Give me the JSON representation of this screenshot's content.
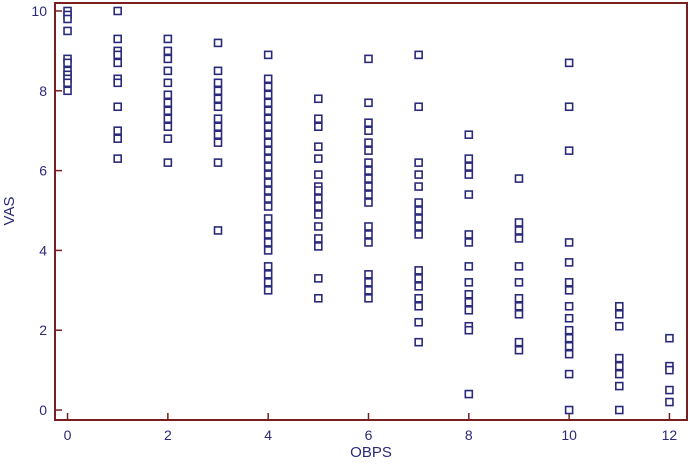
{
  "chart_data": {
    "type": "scatter",
    "title": "",
    "xlabel": "OBPS",
    "ylabel": "VAS",
    "xlim": [
      -0.25,
      12.35
    ],
    "ylim": [
      -0.25,
      10.2
    ],
    "x_ticks": [
      0,
      2,
      4,
      6,
      8,
      10,
      12
    ],
    "y_ticks": [
      0,
      2,
      4,
      6,
      8,
      10
    ],
    "grid": false,
    "legend": "none",
    "colors": {
      "frame": "#7a1f1f",
      "marker": "#2a2a7a",
      "text": "#2a2a7a"
    },
    "series": [
      {
        "marker": "open-square",
        "points": [
          [
            0,
            10
          ],
          [
            0,
            9.9
          ],
          [
            0,
            9.8
          ],
          [
            0,
            9.5
          ],
          [
            0,
            8.8
          ],
          [
            0,
            8.7
          ],
          [
            0,
            8.5
          ],
          [
            0,
            8.4
          ],
          [
            0,
            8.3
          ],
          [
            0,
            8.2
          ],
          [
            0,
            8
          ],
          [
            1,
            10
          ],
          [
            1,
            9.3
          ],
          [
            1,
            9
          ],
          [
            1,
            8.9
          ],
          [
            1,
            8.7
          ],
          [
            1,
            8.3
          ],
          [
            1,
            8.2
          ],
          [
            1,
            7.6
          ],
          [
            1,
            7
          ],
          [
            1,
            6.8
          ],
          [
            1,
            6.3
          ],
          [
            2,
            9.3
          ],
          [
            2,
            9
          ],
          [
            2,
            8.8
          ],
          [
            2,
            8.5
          ],
          [
            2,
            8.2
          ],
          [
            2,
            7.9
          ],
          [
            2,
            7.7
          ],
          [
            2,
            7.5
          ],
          [
            2,
            7.3
          ],
          [
            2,
            7.1
          ],
          [
            2,
            6.8
          ],
          [
            2,
            6.2
          ],
          [
            3,
            9.2
          ],
          [
            3,
            8.5
          ],
          [
            3,
            8.2
          ],
          [
            3,
            8
          ],
          [
            3,
            7.8
          ],
          [
            3,
            7.6
          ],
          [
            3,
            7.3
          ],
          [
            3,
            7.1
          ],
          [
            3,
            6.9
          ],
          [
            3,
            6.7
          ],
          [
            3,
            6.2
          ],
          [
            3,
            4.5
          ],
          [
            4,
            8.9
          ],
          [
            4,
            8.3
          ],
          [
            4,
            8.1
          ],
          [
            4,
            7.9
          ],
          [
            4,
            7.7
          ],
          [
            4,
            7.5
          ],
          [
            4,
            7.3
          ],
          [
            4,
            7.1
          ],
          [
            4,
            6.9
          ],
          [
            4,
            6.7
          ],
          [
            4,
            6.5
          ],
          [
            4,
            6.3
          ],
          [
            4,
            6.1
          ],
          [
            4,
            5.9
          ],
          [
            4,
            5.7
          ],
          [
            4,
            5.5
          ],
          [
            4,
            5.3
          ],
          [
            4,
            5.1
          ],
          [
            4,
            4.8
          ],
          [
            4,
            4.6
          ],
          [
            4,
            4.4
          ],
          [
            4,
            4.2
          ],
          [
            4,
            4
          ],
          [
            4,
            3.6
          ],
          [
            4,
            3.4
          ],
          [
            4,
            3.2
          ],
          [
            4,
            3
          ],
          [
            5,
            7.8
          ],
          [
            5,
            7.3
          ],
          [
            5,
            7.1
          ],
          [
            5,
            6.6
          ],
          [
            5,
            6.3
          ],
          [
            5,
            5.9
          ],
          [
            5,
            5.6
          ],
          [
            5,
            5.5
          ],
          [
            5,
            5.3
          ],
          [
            5,
            5.1
          ],
          [
            5,
            4.9
          ],
          [
            5,
            4.6
          ],
          [
            5,
            4.3
          ],
          [
            5,
            4.1
          ],
          [
            5,
            3.3
          ],
          [
            5,
            2.8
          ],
          [
            6,
            8.8
          ],
          [
            6,
            7.7
          ],
          [
            6,
            7.2
          ],
          [
            6,
            7
          ],
          [
            6,
            6.7
          ],
          [
            6,
            6.5
          ],
          [
            6,
            6.2
          ],
          [
            6,
            6
          ],
          [
            6,
            5.8
          ],
          [
            6,
            5.6
          ],
          [
            6,
            5.4
          ],
          [
            6,
            5.2
          ],
          [
            6,
            4.6
          ],
          [
            6,
            4.4
          ],
          [
            6,
            4.2
          ],
          [
            6,
            3.4
          ],
          [
            6,
            3.2
          ],
          [
            6,
            3
          ],
          [
            6,
            2.8
          ],
          [
            7,
            8.9
          ],
          [
            7,
            7.6
          ],
          [
            7,
            6.2
          ],
          [
            7,
            5.9
          ],
          [
            7,
            5.6
          ],
          [
            7,
            5.2
          ],
          [
            7,
            5
          ],
          [
            7,
            4.8
          ],
          [
            7,
            4.6
          ],
          [
            7,
            4.4
          ],
          [
            7,
            3.5
          ],
          [
            7,
            3.3
          ],
          [
            7,
            3.1
          ],
          [
            7,
            2.8
          ],
          [
            7,
            2.6
          ],
          [
            7,
            2.2
          ],
          [
            7,
            1.7
          ],
          [
            8,
            6.9
          ],
          [
            8,
            6.3
          ],
          [
            8,
            6.1
          ],
          [
            8,
            5.9
          ],
          [
            8,
            5.4
          ],
          [
            8,
            4.4
          ],
          [
            8,
            4.2
          ],
          [
            8,
            3.6
          ],
          [
            8,
            3.2
          ],
          [
            8,
            2.9
          ],
          [
            8,
            2.7
          ],
          [
            8,
            2.5
          ],
          [
            8,
            2.1
          ],
          [
            8,
            2
          ],
          [
            8,
            0.4
          ],
          [
            9,
            5.8
          ],
          [
            9,
            4.7
          ],
          [
            9,
            4.5
          ],
          [
            9,
            4.3
          ],
          [
            9,
            3.6
          ],
          [
            9,
            3.2
          ],
          [
            9,
            2.8
          ],
          [
            9,
            2.6
          ],
          [
            9,
            2.4
          ],
          [
            9,
            1.7
          ],
          [
            9,
            1.5
          ],
          [
            10,
            8.7
          ],
          [
            10,
            7.6
          ],
          [
            10,
            6.5
          ],
          [
            10,
            4.2
          ],
          [
            10,
            3.7
          ],
          [
            10,
            3.2
          ],
          [
            10,
            3
          ],
          [
            10,
            2.6
          ],
          [
            10,
            2.3
          ],
          [
            10,
            2
          ],
          [
            10,
            1.8
          ],
          [
            10,
            1.6
          ],
          [
            10,
            1.4
          ],
          [
            10,
            0.9
          ],
          [
            10,
            0
          ],
          [
            11,
            2.6
          ],
          [
            11,
            2.4
          ],
          [
            11,
            2.1
          ],
          [
            11,
            1.3
          ],
          [
            11,
            1.1
          ],
          [
            11,
            0.9
          ],
          [
            11,
            0.6
          ],
          [
            11,
            0
          ],
          [
            12,
            1.8
          ],
          [
            12,
            1.1
          ],
          [
            12,
            1
          ],
          [
            12,
            0.5
          ],
          [
            12,
            0.2
          ]
        ]
      }
    ]
  }
}
